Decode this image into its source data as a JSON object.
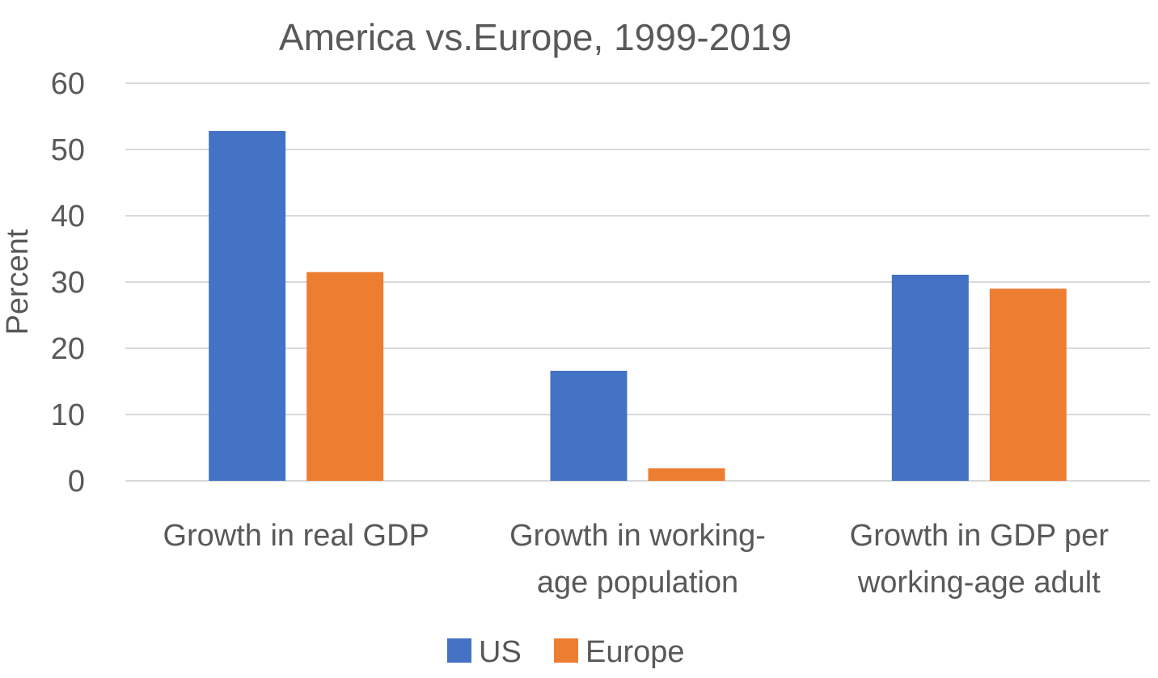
{
  "chart_data": {
    "type": "bar",
    "title": "America vs.Europe, 1999-2019",
    "xlabel": "",
    "ylabel": "Percent",
    "ylim": [
      0,
      60
    ],
    "yticks": [
      0,
      10,
      20,
      30,
      40,
      50,
      60
    ],
    "grid": true,
    "legend_position": "bottom",
    "categories": [
      [
        "Growth in real GDP"
      ],
      [
        "Growth in working-",
        "age population"
      ],
      [
        "Growth in GDP per",
        "working-age adult"
      ]
    ],
    "series": [
      {
        "name": "US",
        "color": "#4472C4",
        "values": [
          52.8,
          16.6,
          31.1
        ]
      },
      {
        "name": "Europe",
        "color": "#ED7D31",
        "values": [
          31.5,
          1.9,
          29.0
        ]
      }
    ]
  }
}
